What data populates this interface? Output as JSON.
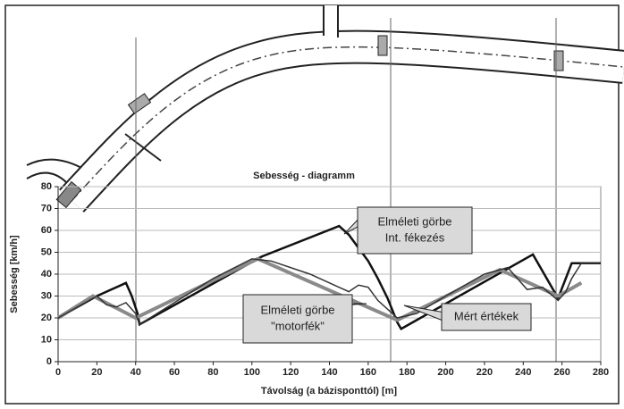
{
  "chart_data": {
    "type": "line",
    "title": "Sebesség - diagramm",
    "x_label": "Távolság (a bázisponttól) [m]",
    "y_label": "Sebesség [km/h]",
    "xlim": [
      0,
      280
    ],
    "xticks": [
      0,
      20,
      40,
      60,
      80,
      100,
      120,
      140,
      160,
      180,
      200,
      220,
      240,
      260,
      280
    ],
    "ylim": [
      0,
      80
    ],
    "yticks": [
      0,
      10,
      20,
      30,
      40,
      50,
      60,
      70,
      80
    ],
    "grid": true,
    "series": [
      {
        "name": [
          "Elméleti görbe",
          "Int. fékezés"
        ],
        "color": "#111111",
        "x": [
          0,
          20,
          35,
          38,
          41,
          42,
          105,
          145,
          150,
          155,
          160,
          165,
          170,
          175,
          177,
          245,
          258,
          265,
          280
        ],
        "values": [
          20,
          30,
          36,
          30,
          22,
          17,
          48,
          62,
          58,
          52,
          46,
          38,
          29,
          18,
          15,
          49,
          29,
          45,
          45
        ]
      },
      {
        "name": [
          "Elméleti görbe",
          "\"motorfék\""
        ],
        "color": "#8a8a8a",
        "x": [
          0,
          18,
          40,
          103,
          175,
          228,
          258,
          270
        ],
        "values": [
          20,
          30,
          20,
          47,
          19,
          42,
          30,
          36
        ]
      },
      {
        "name": [
          "Mért értékek"
        ],
        "color": "#333333",
        "x": [
          0,
          10,
          20,
          25,
          30,
          35,
          40,
          42,
          60,
          80,
          100,
          110,
          130,
          150,
          155,
          160,
          165,
          175,
          185,
          200,
          220,
          232,
          237,
          242,
          250,
          258,
          262,
          265,
          270,
          280
        ],
        "values": [
          20,
          25,
          30,
          26,
          25,
          27,
          22,
          17,
          27,
          38,
          47,
          46,
          40,
          32,
          35,
          34,
          28,
          20,
          22,
          30,
          40,
          43,
          38,
          33,
          34,
          28,
          32,
          38,
          45,
          45
        ]
      }
    ]
  }
}
